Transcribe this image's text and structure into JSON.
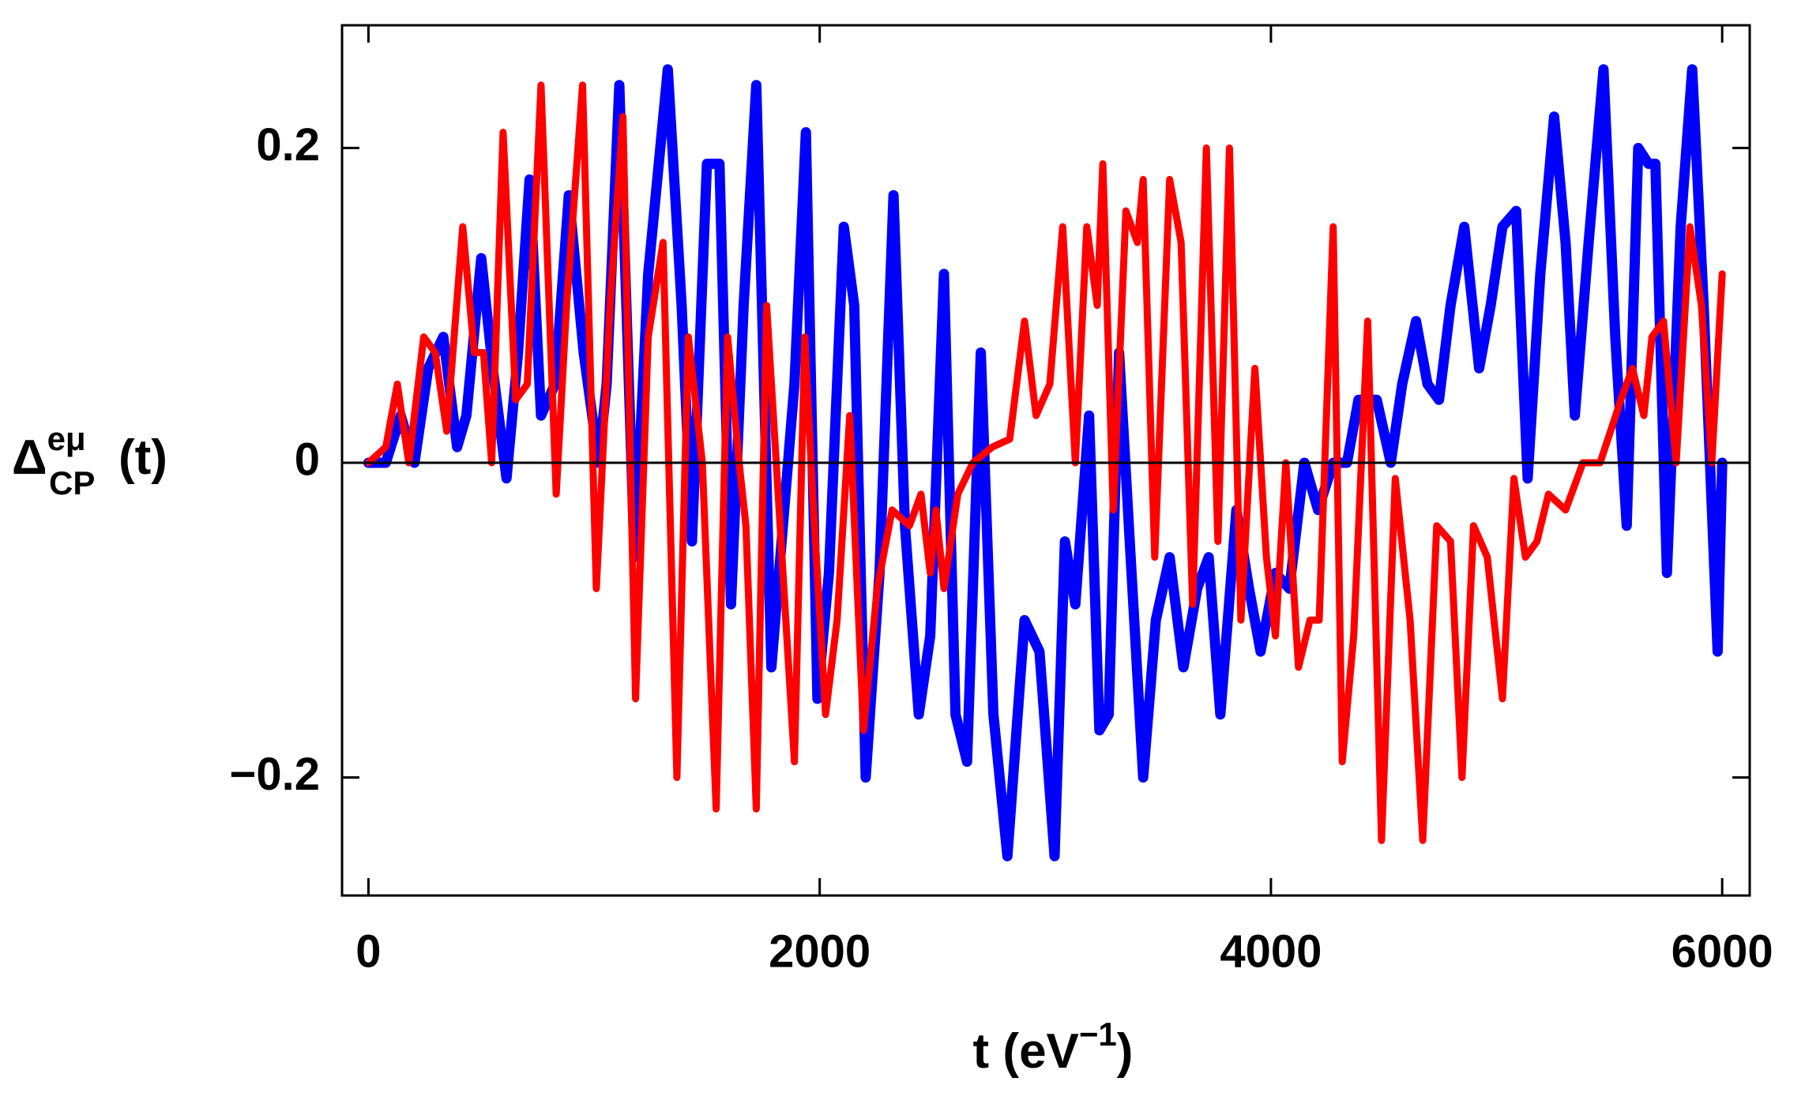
{
  "chart_data": {
    "type": "line",
    "xlabel": {
      "base": "t (eV",
      "sup": "−1",
      "rest": ")"
    },
    "ylabel": {
      "base": "Δ",
      "sup": "eμ",
      "sub": "CP",
      "rest": "(t)"
    },
    "xlim": [
      -117,
      6122
    ],
    "xticks": [
      0,
      2000,
      4000,
      6000
    ],
    "ylim": [
      -0.275,
      0.278
    ],
    "yticks": [
      {
        "value": -0.2,
        "label": "−0.2"
      },
      0,
      0.2
    ],
    "zero_line": true,
    "series": [
      {
        "color": "#0000ff",
        "x": [
          0,
          77,
          143,
          204,
          265,
          332,
          393,
          434,
          500,
          551,
          612,
          663,
          714,
          765,
          827,
          888,
          954,
          1020,
          1056,
          1112,
          1179,
          1240,
          1327,
          1388,
          1434,
          1500,
          1556,
          1607,
          1663,
          1719,
          1786,
          1888,
          1939,
          1990,
          2041,
          2107,
          2153,
          2204,
          2265,
          2327,
          2378,
          2439,
          2490,
          2551,
          2602,
          2653,
          2714,
          2770,
          2832,
          2908,
          2974,
          3041,
          3087,
          3133,
          3194,
          3240,
          3281,
          3327,
          3378,
          3434,
          3490,
          3551,
          3612,
          3673,
          3724,
          3776,
          3847,
          3903,
          3954,
          4020,
          4082,
          4148,
          4209,
          4276,
          4337,
          4388,
          4469,
          4531,
          4582,
          4643,
          4694,
          4745,
          4796,
          4857,
          4923,
          4974,
          5026,
          5087,
          5138,
          5194,
          5255,
          5306,
          5347,
          5408,
          5474,
          5526,
          5577,
          5628,
          5673,
          5704,
          5755,
          5816,
          5867,
          5918,
          5980,
          6000
        ],
        "values": [
          0,
          0,
          0.03,
          0,
          0.06,
          0.08,
          0.01,
          0.03,
          0.13,
          0.06,
          -0.01,
          0.07,
          0.18,
          0.03,
          0.05,
          0.17,
          0.07,
          0,
          0.05,
          0.24,
          -0.06,
          0.12,
          0.25,
          0.1,
          -0.05,
          0.19,
          0.19,
          -0.09,
          0.1,
          0.24,
          -0.13,
          0.05,
          0.21,
          -0.15,
          -0.07,
          0.15,
          0.1,
          -0.2,
          -0.07,
          0.17,
          -0.04,
          -0.16,
          -0.11,
          0.12,
          -0.16,
          -0.19,
          0.07,
          -0.16,
          -0.25,
          -0.1,
          -0.12,
          -0.25,
          -0.05,
          -0.09,
          0.03,
          -0.17,
          -0.16,
          0.07,
          -0.06,
          -0.2,
          -0.1,
          -0.06,
          -0.13,
          -0.08,
          -0.06,
          -0.16,
          -0.03,
          -0.08,
          -0.12,
          -0.07,
          -0.08,
          0,
          -0.03,
          0,
          0,
          0.04,
          0.04,
          0,
          0.05,
          0.09,
          0.05,
          0.04,
          0.1,
          0.15,
          0.06,
          0.1,
          0.15,
          0.16,
          -0.01,
          0.12,
          0.22,
          0.14,
          0.03,
          0.14,
          0.25,
          0.08,
          -0.04,
          0.2,
          0.19,
          0.19,
          -0.07,
          0.15,
          0.25,
          0.1,
          -0.12,
          0
        ]
      },
      {
        "color": "#ff0000",
        "x": [
          0,
          77,
          128,
          179,
          245,
          296,
          347,
          418,
          469,
          510,
          546,
          597,
          653,
          704,
          765,
          832,
          878,
          949,
          1010,
          1071,
          1128,
          1184,
          1240,
          1306,
          1367,
          1418,
          1480,
          1541,
          1592,
          1643,
          1673,
          1719,
          1765,
          1816,
          1888,
          1934,
          1969,
          2026,
          2077,
          2133,
          2194,
          2255,
          2321,
          2398,
          2449,
          2490,
          2515,
          2551,
          2612,
          2679,
          2765,
          2842,
          2908,
          2959,
          3020,
          3077,
          3133,
          3184,
          3230,
          3255,
          3301,
          3357,
          3408,
          3434,
          3485,
          3551,
          3602,
          3653,
          3714,
          3765,
          3816,
          3867,
          3929,
          3980,
          4020,
          4066,
          4122,
          4173,
          4214,
          4276,
          4316,
          4367,
          4429,
          4490,
          4551,
          4617,
          4673,
          4735,
          4796,
          4847,
          4898,
          4959,
          5026,
          5077,
          5128,
          5179,
          5230,
          5306,
          5383,
          5459,
          5551,
          5602,
          5653,
          5689,
          5740,
          5796,
          5857,
          5908,
          5954,
          6000
        ],
        "values": [
          0,
          0.01,
          0.05,
          0,
          0.08,
          0.07,
          0.02,
          0.15,
          0.07,
          0.07,
          0,
          0.21,
          0.04,
          0.05,
          0.24,
          -0.02,
          0.1,
          0.24,
          -0.08,
          0.1,
          0.22,
          -0.15,
          0.08,
          0.14,
          -0.2,
          0.08,
          0,
          -0.22,
          0.08,
          0,
          -0.04,
          -0.22,
          0.1,
          -0.02,
          -0.19,
          0.08,
          -0.02,
          -0.16,
          -0.1,
          0.03,
          -0.17,
          -0.08,
          -0.03,
          -0.04,
          -0.02,
          -0.07,
          -0.03,
          -0.08,
          -0.02,
          0,
          0.01,
          0.015,
          0.09,
          0.03,
          0.05,
          0.15,
          0,
          0.15,
          0.1,
          0.19,
          -0.03,
          0.16,
          0.14,
          0.18,
          -0.06,
          0.18,
          0.14,
          -0.09,
          0.2,
          -0.05,
          0.2,
          -0.1,
          0.06,
          -0.06,
          -0.11,
          0,
          -0.13,
          -0.1,
          -0.1,
          0.15,
          -0.19,
          -0.11,
          0.09,
          -0.24,
          -0.01,
          -0.1,
          -0.24,
          -0.04,
          -0.05,
          -0.2,
          -0.04,
          -0.06,
          -0.15,
          -0.01,
          -0.06,
          -0.05,
          -0.02,
          -0.03,
          0,
          0,
          0.04,
          0.06,
          0.03,
          0.08,
          0.09,
          0,
          0.15,
          0.1,
          0,
          0.12
        ]
      }
    ]
  }
}
